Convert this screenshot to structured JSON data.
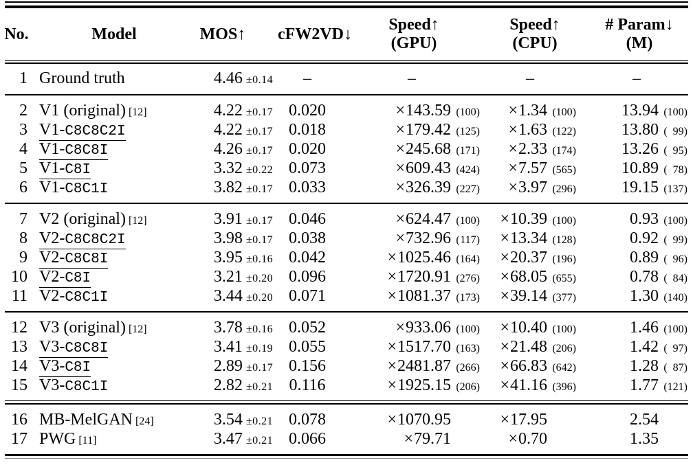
{
  "symbols": {
    "times": "×",
    "dash": "–"
  },
  "header": {
    "columns": [
      {
        "id": "no",
        "line1": "No.",
        "line2": ""
      },
      {
        "id": "model",
        "line1": "Model",
        "line2": ""
      },
      {
        "id": "mos",
        "line1": "MOS↑",
        "line2": ""
      },
      {
        "id": "cfw2vd",
        "line1": "cFW2VD↓",
        "line2": ""
      },
      {
        "id": "speed_gpu",
        "line1": "Speed↑",
        "line2": "(GPU)"
      },
      {
        "id": "speed_cpu",
        "line1": "Speed↑",
        "line2": "(CPU)"
      },
      {
        "id": "param",
        "line1": "# Param↓",
        "line2": "(M)"
      }
    ]
  },
  "groups": [
    {
      "rows": [
        {
          "no": "1",
          "model": {
            "base": "Ground truth",
            "mono": "",
            "cite": "",
            "underline": false
          },
          "mos": "4.46",
          "mos_pm": "±0.14",
          "cfw2vd": "–",
          "speed_gpu": {
            "v": "–",
            "rel": ""
          },
          "speed_cpu": {
            "v": "–",
            "rel": ""
          },
          "param": {
            "v": "–",
            "rel": ""
          }
        }
      ]
    },
    {
      "rows": [
        {
          "no": "2",
          "model": {
            "base": "V1 (original)",
            "mono": "",
            "cite": "[12]",
            "underline": false
          },
          "mos": "4.22",
          "mos_pm": "±0.17",
          "cfw2vd": "0.020",
          "speed_gpu": {
            "v": "143.59",
            "rel": "100"
          },
          "speed_cpu": {
            "v": "1.34",
            "rel": "100"
          },
          "param": {
            "v": "13.94",
            "rel": "100"
          }
        },
        {
          "no": "3",
          "model": {
            "base": "V1-",
            "mono": "C8C8C2I",
            "cite": "",
            "underline": true
          },
          "mos": "4.22",
          "mos_pm": "±0.17",
          "cfw2vd": "0.018",
          "speed_gpu": {
            "v": "179.42",
            "rel": "125"
          },
          "speed_cpu": {
            "v": "1.63",
            "rel": "122"
          },
          "param": {
            "v": "13.80",
            "rel": "99"
          }
        },
        {
          "no": "4",
          "model": {
            "base": "V1-",
            "mono": "C8C8I",
            "cite": "",
            "underline": true
          },
          "mos": "4.26",
          "mos_pm": "±0.17",
          "cfw2vd": "0.020",
          "speed_gpu": {
            "v": "245.68",
            "rel": "171"
          },
          "speed_cpu": {
            "v": "2.33",
            "rel": "174"
          },
          "param": {
            "v": "13.26",
            "rel": "95"
          }
        },
        {
          "no": "5",
          "model": {
            "base": "V1-",
            "mono": "C8I",
            "cite": "",
            "underline": true
          },
          "mos": "3.32",
          "mos_pm": "±0.22",
          "cfw2vd": "0.073",
          "speed_gpu": {
            "v": "609.43",
            "rel": "424"
          },
          "speed_cpu": {
            "v": "7.57",
            "rel": "565"
          },
          "param": {
            "v": "10.89",
            "rel": "78"
          }
        },
        {
          "no": "6",
          "model": {
            "base": "V1-",
            "mono": "C8C1I",
            "cite": "",
            "underline": false
          },
          "mos": "3.82",
          "mos_pm": "±0.17",
          "cfw2vd": "0.033",
          "speed_gpu": {
            "v": "326.39",
            "rel": "227"
          },
          "speed_cpu": {
            "v": "3.97",
            "rel": "296"
          },
          "param": {
            "v": "19.15",
            "rel": "137"
          }
        }
      ]
    },
    {
      "rows": [
        {
          "no": "7",
          "model": {
            "base": "V2 (original)",
            "mono": "",
            "cite": "[12]",
            "underline": false
          },
          "mos": "3.91",
          "mos_pm": "±0.17",
          "cfw2vd": "0.046",
          "speed_gpu": {
            "v": "624.47",
            "rel": "100"
          },
          "speed_cpu": {
            "v": "10.39",
            "rel": "100"
          },
          "param": {
            "v": "0.93",
            "rel": "100"
          }
        },
        {
          "no": "8",
          "model": {
            "base": "V2-",
            "mono": "C8C8C2I",
            "cite": "",
            "underline": true
          },
          "mos": "3.98",
          "mos_pm": "±0.17",
          "cfw2vd": "0.038",
          "speed_gpu": {
            "v": "732.96",
            "rel": "117"
          },
          "speed_cpu": {
            "v": "13.34",
            "rel": "128"
          },
          "param": {
            "v": "0.92",
            "rel": "99"
          }
        },
        {
          "no": "9",
          "model": {
            "base": "V2-",
            "mono": "C8C8I",
            "cite": "",
            "underline": true
          },
          "mos": "3.95",
          "mos_pm": "±0.16",
          "cfw2vd": "0.042",
          "speed_gpu": {
            "v": "1025.46",
            "rel": "164"
          },
          "speed_cpu": {
            "v": "20.37",
            "rel": "196"
          },
          "param": {
            "v": "0.89",
            "rel": "96"
          }
        },
        {
          "no": "10",
          "model": {
            "base": "V2-",
            "mono": "C8I",
            "cite": "",
            "underline": true
          },
          "mos": "3.21",
          "mos_pm": "±0.20",
          "cfw2vd": "0.096",
          "speed_gpu": {
            "v": "1720.91",
            "rel": "276"
          },
          "speed_cpu": {
            "v": "68.05",
            "rel": "655"
          },
          "param": {
            "v": "0.78",
            "rel": "84"
          }
        },
        {
          "no": "11",
          "model": {
            "base": "V2-",
            "mono": "C8C1I",
            "cite": "",
            "underline": false
          },
          "mos": "3.44",
          "mos_pm": "±0.20",
          "cfw2vd": "0.071",
          "speed_gpu": {
            "v": "1081.37",
            "rel": "173"
          },
          "speed_cpu": {
            "v": "39.14",
            "rel": "377"
          },
          "param": {
            "v": "1.30",
            "rel": "140"
          }
        }
      ]
    },
    {
      "rows": [
        {
          "no": "12",
          "model": {
            "base": "V3 (original)",
            "mono": "",
            "cite": "[12]",
            "underline": false
          },
          "mos": "3.78",
          "mos_pm": "±0.16",
          "cfw2vd": "0.052",
          "speed_gpu": {
            "v": "933.06",
            "rel": "100"
          },
          "speed_cpu": {
            "v": "10.40",
            "rel": "100"
          },
          "param": {
            "v": "1.46",
            "rel": "100"
          }
        },
        {
          "no": "13",
          "model": {
            "base": "V3-",
            "mono": "C8C8I",
            "cite": "",
            "underline": true
          },
          "mos": "3.41",
          "mos_pm": "±0.19",
          "cfw2vd": "0.055",
          "speed_gpu": {
            "v": "1517.70",
            "rel": "163"
          },
          "speed_cpu": {
            "v": "21.48",
            "rel": "206"
          },
          "param": {
            "v": "1.42",
            "rel": "97"
          }
        },
        {
          "no": "14",
          "model": {
            "base": "V3-",
            "mono": "C8I",
            "cite": "",
            "underline": true
          },
          "mos": "2.89",
          "mos_pm": "±0.17",
          "cfw2vd": "0.156",
          "speed_gpu": {
            "v": "2481.87",
            "rel": "266"
          },
          "speed_cpu": {
            "v": "66.83",
            "rel": "642"
          },
          "param": {
            "v": "1.28",
            "rel": "87"
          }
        },
        {
          "no": "15",
          "model": {
            "base": "V3-",
            "mono": "C8C1I",
            "cite": "",
            "underline": false
          },
          "mos": "2.82",
          "mos_pm": "±0.21",
          "cfw2vd": "0.116",
          "speed_gpu": {
            "v": "1925.15",
            "rel": "206"
          },
          "speed_cpu": {
            "v": "41.16",
            "rel": "396"
          },
          "param": {
            "v": "1.77",
            "rel": "121"
          }
        }
      ]
    },
    {
      "rows": [
        {
          "no": "16",
          "model": {
            "base": "MB-MelGAN",
            "mono": "",
            "cite": "[24]",
            "underline": false
          },
          "mos": "3.54",
          "mos_pm": "±0.21",
          "cfw2vd": "0.078",
          "speed_gpu": {
            "v": "1070.95",
            "rel": ""
          },
          "speed_cpu": {
            "v": "17.95",
            "rel": ""
          },
          "param": {
            "v": "2.54",
            "rel": ""
          }
        },
        {
          "no": "17",
          "model": {
            "base": "PWG",
            "mono": "",
            "cite": "[11]",
            "underline": false
          },
          "mos": "3.47",
          "mos_pm": "±0.21",
          "cfw2vd": "0.066",
          "speed_gpu": {
            "v": "79.71",
            "rel": ""
          },
          "speed_cpu": {
            "v": "0.70",
            "rel": ""
          },
          "param": {
            "v": "1.35",
            "rel": ""
          }
        }
      ]
    }
  ]
}
